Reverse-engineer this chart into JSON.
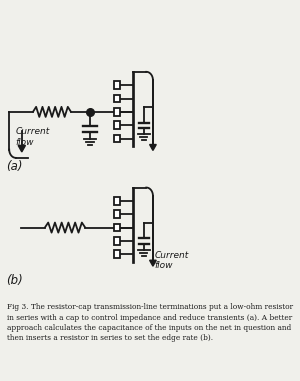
{
  "bg_color": "#f0f0eb",
  "line_color": "#1a1a1a",
  "text_color": "#1a1a1a",
  "fig_width": 3.0,
  "fig_height": 3.81,
  "caption": "Fig 3. The resistor-cap transmission-line terminations put a low-ohm resistor\nin series with a cap to control impedance and reduce transients (a). A better\napproach calculates the capacitance of the inputs on the net in question and\nthen inserts a resistor in series to set the edge rate (b).",
  "label_a": "(a)",
  "label_b": "(b)",
  "current_flow_a": "Current\nflow",
  "current_flow_b": "Current\nflow"
}
